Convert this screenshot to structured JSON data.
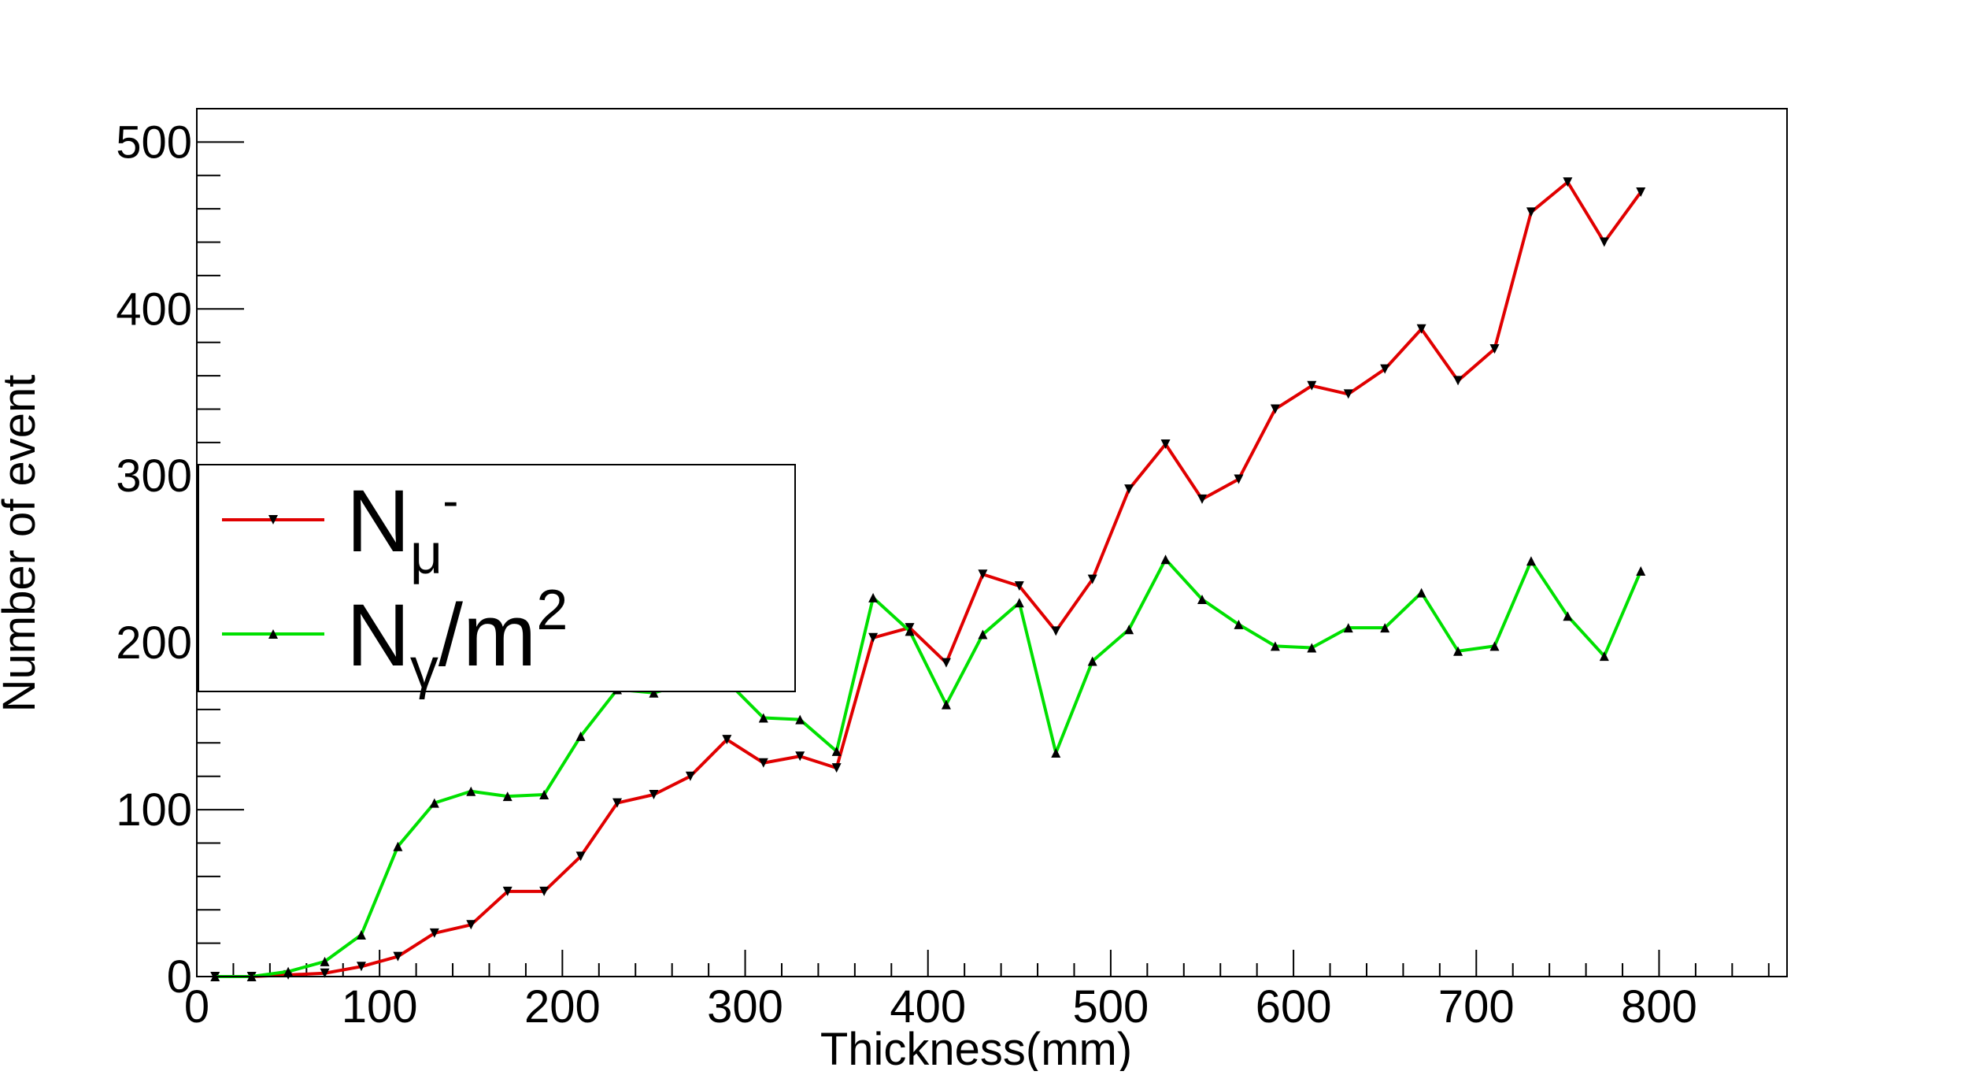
{
  "chart_data": {
    "type": "line",
    "xlabel": "Thickness(mm)",
    "ylabel": "Number of event",
    "xlim": [
      0,
      870
    ],
    "ylim": [
      0,
      520
    ],
    "x_ticks": [
      0,
      100,
      200,
      300,
      400,
      500,
      600,
      700,
      800
    ],
    "y_ticks": [
      0,
      100,
      200,
      300,
      400,
      500
    ],
    "x_tick_labels": [
      "0",
      "100",
      "200",
      "300",
      "400",
      "500",
      "600",
      "700",
      "800"
    ],
    "y_tick_labels": [
      "0",
      "100",
      "200",
      "300",
      "400",
      "500"
    ],
    "grid": false,
    "legend_position": "left",
    "x": [
      10,
      30,
      50,
      70,
      90,
      110,
      130,
      150,
      170,
      190,
      210,
      230,
      250,
      270,
      290,
      310,
      330,
      350,
      370,
      390,
      410,
      430,
      450,
      470,
      490,
      510,
      530,
      550,
      570,
      590,
      610,
      630,
      650,
      670,
      690,
      710,
      730,
      750,
      770,
      790
    ],
    "series": [
      {
        "name": "N_μ-",
        "legend_main": "N",
        "legend_sub": "μ",
        "legend_sup": "-",
        "legend_tail": "",
        "legend_tail_sup": "",
        "color": "#e00000",
        "marker": "triangle-down",
        "values": [
          0,
          0,
          1,
          2,
          6,
          12,
          26,
          31,
          51,
          51,
          72,
          104,
          109,
          120,
          142,
          128,
          132,
          125,
          203,
          209,
          188,
          241,
          234,
          207,
          238,
          292,
          319,
          286,
          298,
          340,
          354,
          349,
          364,
          388,
          357,
          376,
          458,
          476,
          440,
          470
        ]
      },
      {
        "name": "N_γ/m2",
        "legend_main": "N",
        "legend_sub": "γ",
        "legend_sup": "",
        "legend_tail": "/m",
        "legend_tail_sup": "2",
        "color": "#00e000",
        "marker": "triangle-up",
        "values": [
          0,
          0,
          3,
          9,
          25,
          78,
          104,
          111,
          108,
          109,
          144,
          172,
          170,
          176,
          177,
          155,
          154,
          135,
          227,
          207,
          163,
          205,
          224,
          134,
          189,
          208,
          250,
          226,
          211,
          198,
          197,
          209,
          209,
          230,
          195,
          198,
          249,
          216,
          192,
          243
        ]
      }
    ]
  }
}
